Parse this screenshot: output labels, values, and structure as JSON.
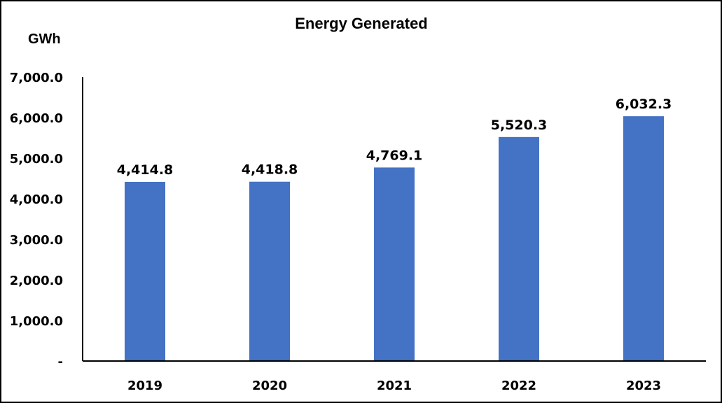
{
  "chart_data": {
    "type": "bar",
    "title": "Energy Generated",
    "ylabel": "GWh",
    "categories": [
      "2019",
      "2020",
      "2021",
      "2022",
      "2023"
    ],
    "values": [
      4414.8,
      4418.8,
      4769.1,
      5520.3,
      6032.3
    ],
    "data_labels": [
      "4,414.8",
      "4,418.8",
      "4,769.1",
      "5,520.3",
      "6,032.3"
    ],
    "ylim": [
      0,
      7000
    ],
    "yticks": [
      0,
      1000,
      2000,
      3000,
      4000,
      5000,
      6000,
      7000
    ],
    "ytick_labels": [
      "-",
      "1,000.0",
      "2,000.0",
      "3,000.0",
      "4,000.0",
      "5,000.0",
      "6,000.0",
      "7,000.0"
    ],
    "grid": false,
    "legend": "none",
    "bar_color": "#4472C4"
  }
}
